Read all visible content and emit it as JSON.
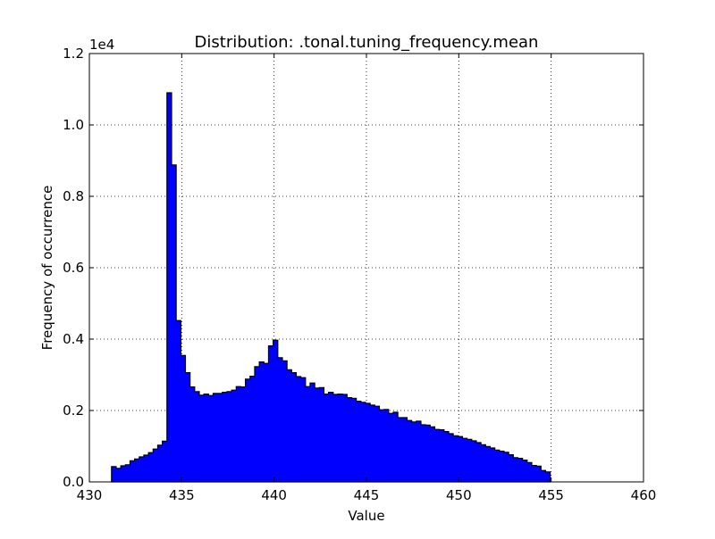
{
  "chart_data": {
    "type": "histogram",
    "title": "Distribution: .tonal.tuning_frequency.mean",
    "xlabel": "Value",
    "ylabel": "Frequency of occurrence",
    "y_offset_label": "1e4",
    "y_scale": 10000,
    "xlim": [
      430,
      460
    ],
    "ylim": [
      0,
      12000
    ],
    "x_ticks": [
      430,
      435,
      440,
      445,
      450,
      455,
      460
    ],
    "x_tick_labels": [
      "430",
      "435",
      "440",
      "445",
      "450",
      "455",
      "460"
    ],
    "y_ticks": [
      0,
      2000,
      4000,
      6000,
      8000,
      10000,
      12000
    ],
    "y_tick_labels": [
      "0.0",
      "0.2",
      "0.4",
      "0.6",
      "0.8",
      "1.0",
      "1.2"
    ],
    "grid": true,
    "bin_start": 431.2,
    "bin_width": 0.25,
    "bar_color": "#0000ff",
    "edge_color": "#000000",
    "counts": [
      430,
      380,
      450,
      480,
      590,
      640,
      700,
      750,
      820,
      920,
      1030,
      1140,
      10900,
      8880,
      4520,
      3540,
      3060,
      2660,
      2530,
      2430,
      2460,
      2420,
      2480,
      2480,
      2510,
      2530,
      2570,
      2670,
      2660,
      2880,
      2960,
      3230,
      3360,
      3320,
      3810,
      3970,
      3480,
      3390,
      3140,
      3060,
      2950,
      2920,
      2670,
      2770,
      2630,
      2640,
      2460,
      2510,
      2450,
      2460,
      2450,
      2360,
      2340,
      2260,
      2230,
      2200,
      2150,
      2120,
      2020,
      2030,
      1920,
      1950,
      1800,
      1800,
      1720,
      1680,
      1700,
      1600,
      1590,
      1540,
      1470,
      1460,
      1410,
      1350,
      1290,
      1270,
      1220,
      1190,
      1150,
      1100,
      1040,
      990,
      950,
      890,
      860,
      830,
      760,
      680,
      660,
      610,
      540,
      460,
      440,
      320,
      280
    ]
  }
}
